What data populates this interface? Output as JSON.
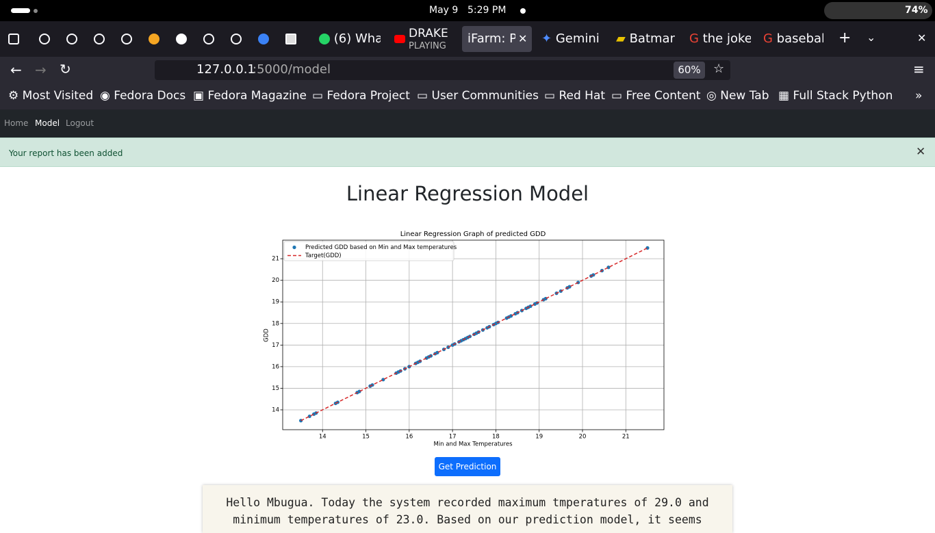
{
  "system_bar": {
    "date": "May 9",
    "time": "5:29 PM",
    "battery": "74%"
  },
  "tabs": [
    "(6) Wha",
    "DRAKE",
    "PLAYING",
    "iFarm: P",
    "Gemini",
    "Batman",
    "the joke",
    "basebal"
  ],
  "toolbar": {
    "url_host": "127.0.0.1",
    "url_path": ":5000/model",
    "zoom": "60%"
  },
  "bookmarks": [
    "Most Visited",
    "Fedora Docs",
    "Fedora Magazine",
    "Fedora Project",
    "User Communities",
    "Red Hat",
    "Free Content",
    "New Tab",
    "Full Stack Python"
  ],
  "site_nav": [
    "Home",
    "Model",
    "Logout"
  ],
  "alert": "Your report has been added",
  "heading": "Linear Regression Model",
  "chart_data": {
    "type": "scatter",
    "title": "Linear Regression Graph of predicted GDD",
    "xlabel": "Min and Max Temperatures",
    "ylabel": "GDD",
    "xlim": [
      13.08,
      21.88
    ],
    "ylim": [
      13.08,
      21.86
    ],
    "xticks": [
      14,
      15,
      16,
      17,
      18,
      19,
      20,
      21
    ],
    "yticks": [
      14,
      15,
      16,
      17,
      18,
      19,
      20,
      21
    ],
    "grid": true,
    "legend": "upper left",
    "series": [
      {
        "name": "Predicted GDD based on Min and Max temperatures",
        "color": "#1f77b4",
        "x": [
          13.5,
          13.7,
          13.8,
          13.85,
          14.3,
          14.35,
          14.8,
          14.85,
          15.1,
          15.15,
          15.4,
          15.7,
          15.75,
          15.8,
          15.9,
          16.0,
          16.15,
          16.2,
          16.25,
          16.4,
          16.45,
          16.5,
          16.6,
          16.65,
          16.8,
          16.9,
          17.0,
          17.05,
          17.15,
          17.2,
          17.25,
          17.3,
          17.35,
          17.4,
          17.5,
          17.55,
          17.6,
          17.7,
          17.8,
          17.85,
          17.95,
          18.0,
          18.05,
          18.25,
          18.3,
          18.35,
          18.45,
          18.5,
          18.6,
          18.7,
          18.75,
          18.8,
          18.9,
          18.95,
          19.1,
          19.15,
          19.4,
          19.5,
          19.65,
          19.7,
          19.9,
          20.2,
          20.25,
          20.45,
          20.6,
          21.5
        ],
        "values": [
          13.5,
          13.7,
          13.8,
          13.85,
          14.3,
          14.35,
          14.8,
          14.85,
          15.1,
          15.15,
          15.4,
          15.7,
          15.75,
          15.8,
          15.9,
          16.0,
          16.15,
          16.2,
          16.25,
          16.4,
          16.45,
          16.5,
          16.6,
          16.65,
          16.8,
          16.9,
          17.0,
          17.05,
          17.15,
          17.2,
          17.25,
          17.3,
          17.35,
          17.4,
          17.5,
          17.55,
          17.6,
          17.7,
          17.8,
          17.85,
          17.95,
          18.0,
          18.05,
          18.25,
          18.3,
          18.35,
          18.45,
          18.5,
          18.6,
          18.7,
          18.75,
          18.8,
          18.9,
          18.95,
          19.1,
          19.15,
          19.4,
          19.5,
          19.65,
          19.7,
          19.9,
          20.2,
          20.25,
          20.45,
          20.6,
          21.5
        ]
      },
      {
        "name": "Target(GDD)",
        "color": "#d62728",
        "linestyle": "dashed",
        "x": [
          13.5,
          21.5
        ],
        "values": [
          13.5,
          21.5
        ]
      }
    ]
  },
  "button": "Get Prediction",
  "message": "Hello Mbugua. Today the system recorded maximum tmperatures of 29.0 and minimum temperatures of 23.0. Based on our prediction model, it seems"
}
